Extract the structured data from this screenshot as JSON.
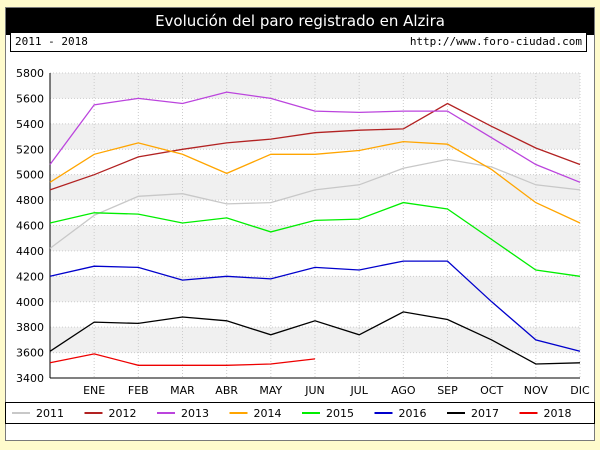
{
  "header": {
    "title": "Evolución del paro registrado en Alzira",
    "period": "2011 - 2018",
    "url": "http://www.foro-ciudad.com"
  },
  "chart_data": {
    "type": "line",
    "title": "Evolución del paro registrado en Alzira",
    "categories": [
      "",
      "ENE",
      "FEB",
      "MAR",
      "ABR",
      "MAY",
      "JUN",
      "JUL",
      "AGO",
      "SEP",
      "OCT",
      "NOV",
      "DIC"
    ],
    "ylim": [
      3400,
      5800
    ],
    "yticks": [
      3400,
      3600,
      3800,
      4000,
      4200,
      4400,
      4600,
      4800,
      5000,
      5200,
      5400,
      5600,
      5800
    ],
    "grid": true,
    "legend_position": "bottom",
    "series": [
      {
        "name": "2011",
        "color": "#c8c8c8",
        "values": [
          4420,
          4680,
          4830,
          4850,
          4770,
          4780,
          4880,
          4920,
          5050,
          5120,
          5060,
          4920,
          4880
        ]
      },
      {
        "name": "2012",
        "color": "#b22222",
        "values": [
          4880,
          5000,
          5140,
          5200,
          5250,
          5280,
          5330,
          5350,
          5360,
          5560,
          5380,
          5210,
          5080
        ]
      },
      {
        "name": "2013",
        "color": "#bb44dd",
        "values": [
          5080,
          5550,
          5600,
          5560,
          5650,
          5600,
          5500,
          5490,
          5500,
          5500,
          5290,
          5080,
          4940
        ]
      },
      {
        "name": "2014",
        "color": "#ffa500",
        "values": [
          4940,
          5160,
          5250,
          5160,
          5010,
          5160,
          5160,
          5190,
          5260,
          5240,
          5040,
          4780,
          4620
        ]
      },
      {
        "name": "2015",
        "color": "#00ee00",
        "values": [
          4620,
          4700,
          4690,
          4620,
          4660,
          4550,
          4640,
          4650,
          4780,
          4730,
          4490,
          4250,
          4200
        ]
      },
      {
        "name": "2016",
        "color": "#0000cc",
        "values": [
          4200,
          4280,
          4270,
          4170,
          4200,
          4180,
          4270,
          4250,
          4320,
          4320,
          4000,
          3700,
          3610
        ]
      },
      {
        "name": "2017",
        "color": "#000000",
        "values": [
          3610,
          3840,
          3830,
          3880,
          3850,
          3740,
          3850,
          3740,
          3920,
          3860,
          3700,
          3510,
          3520
        ]
      },
      {
        "name": "2018",
        "color": "#ee0000",
        "values": [
          3520,
          3590,
          3500,
          3500,
          3500,
          3510,
          3550,
          null,
          null,
          null,
          null,
          null,
          null
        ]
      }
    ]
  }
}
